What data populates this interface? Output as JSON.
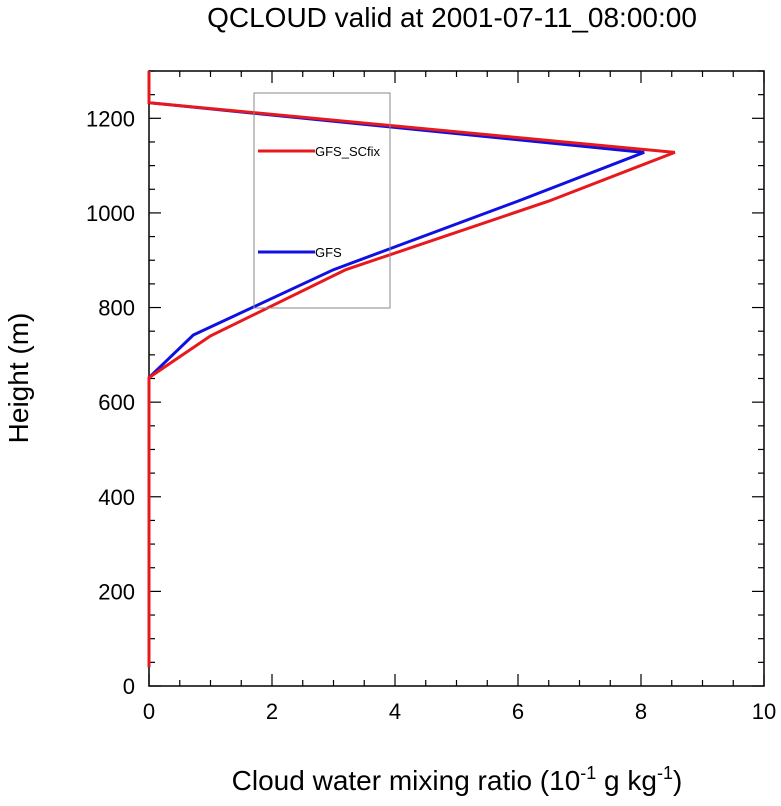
{
  "chart_data": {
    "type": "line",
    "title": "QCLOUD valid at 2001-07-11_08:00:00",
    "xlabel_base": "Cloud water mixing ratio (10",
    "xlabel_exp1": "-1",
    "xlabel_mid": " g kg",
    "xlabel_exp2": "-1",
    "xlabel_end": ")",
    "ylabel": "Height (m)",
    "xlim": [
      0,
      10
    ],
    "ylim": [
      0,
      1300
    ],
    "xticks": [
      0,
      2,
      4,
      6,
      8,
      10
    ],
    "yticks": [
      0,
      200,
      400,
      600,
      800,
      1000,
      1200
    ],
    "xtick_labels": [
      "0",
      "2",
      "4",
      "6",
      "8",
      "10"
    ],
    "ytick_labels": [
      "0",
      "200",
      "400",
      "600",
      "800",
      "1000",
      "1200"
    ],
    "grid": false,
    "legend_position": "top-center",
    "series": [
      {
        "name": "GFS_SCfix",
        "color": "#e8191c",
        "x": [
          0,
          0,
          0,
          0,
          0,
          0,
          0,
          1.0,
          3.2,
          6.5,
          8.55,
          0,
          0
        ],
        "y": [
          40,
          100,
          200,
          300,
          400,
          500,
          652,
          740,
          880,
          1025,
          1128,
          1233,
          1300
        ]
      },
      {
        "name": "GFS",
        "color": "#1010e0",
        "x": [
          0,
          0,
          0,
          0,
          0,
          0,
          0,
          0.72,
          3.0,
          6.0,
          8.05,
          0,
          0
        ],
        "y": [
          40,
          100,
          200,
          300,
          400,
          500,
          652,
          742,
          880,
          1025,
          1128,
          1233,
          1300
        ]
      }
    ]
  }
}
